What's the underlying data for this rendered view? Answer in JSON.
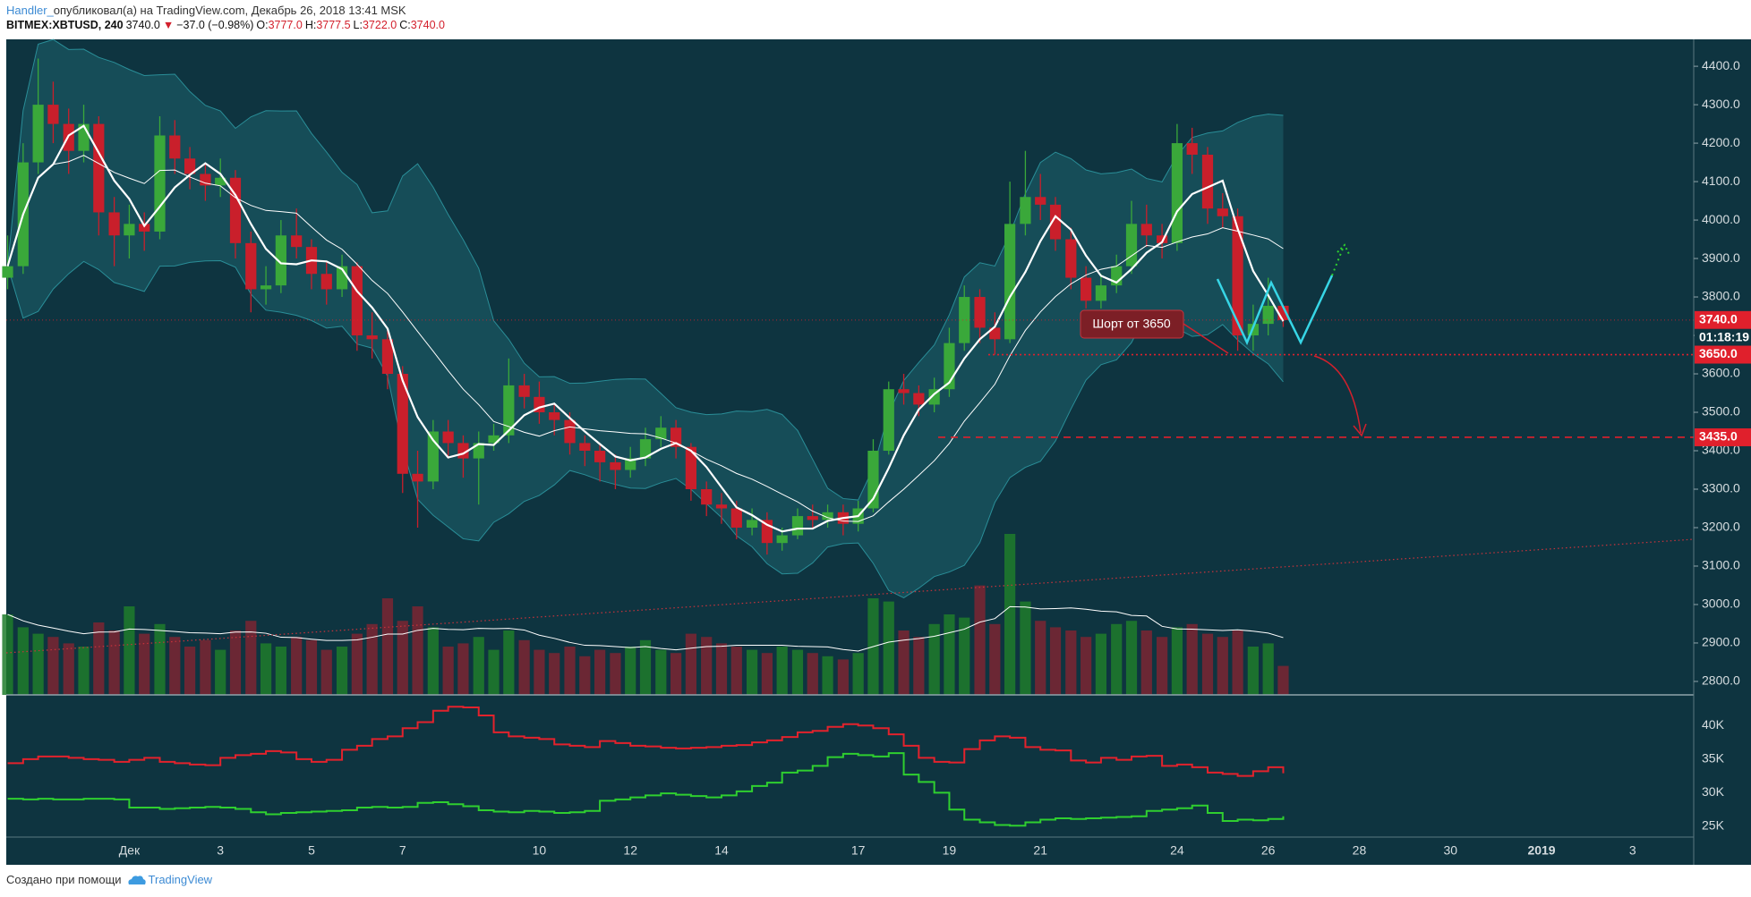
{
  "header": {
    "author": "Handler_",
    "published": "опубликовал(а) на TradingView.com, Декабрь 26, 2018 13:41 MSK",
    "symbol": "BITMEX:XBTUSD, 240",
    "price": "3740.0",
    "arrow": "▼",
    "change": "−37.0 (−0.98%)",
    "o_label": "O:",
    "o": "3777.0",
    "h_label": "H:",
    "h": "3777.5",
    "l_label": "L:",
    "l": "3722.0",
    "c_label": "C:",
    "c": "3740.0"
  },
  "footer": {
    "text": "Создано при помощи",
    "brand": "TradingView"
  },
  "chart_data": {
    "type": "candlestick",
    "xlim": [
      -2.7,
      34.34
    ],
    "xticks": [
      {
        "value": 0,
        "label": "Дек"
      },
      {
        "value": 2,
        "label": "3"
      },
      {
        "value": 4,
        "label": "5"
      },
      {
        "value": 6,
        "label": "7"
      },
      {
        "value": 9,
        "label": "10"
      },
      {
        "value": 11,
        "label": "12"
      },
      {
        "value": 13,
        "label": "14"
      },
      {
        "value": 16,
        "label": "17"
      },
      {
        "value": 18,
        "label": "19"
      },
      {
        "value": 20,
        "label": "21"
      },
      {
        "value": 23,
        "label": "24"
      },
      {
        "value": 25,
        "label": "26"
      },
      {
        "value": 27,
        "label": "28"
      },
      {
        "value": 29,
        "label": "30"
      },
      {
        "value": 31,
        "label": "2019"
      },
      {
        "value": 33,
        "label": "3"
      }
    ],
    "ylim": [
      2765,
      4470
    ],
    "yticks": [
      {
        "value": 4400,
        "label": "4400.0"
      },
      {
        "value": 4300,
        "label": "4300.0"
      },
      {
        "value": 4200,
        "label": "4200.0"
      },
      {
        "value": 4100,
        "label": "4100.0"
      },
      {
        "value": 4000,
        "label": "4000.0"
      },
      {
        "value": 3900,
        "label": "3900.0"
      },
      {
        "value": 3800,
        "label": "3800.0"
      },
      {
        "value": 3700,
        "label": "3700.0"
      },
      {
        "value": 3600,
        "label": "3600.0"
      },
      {
        "value": 3500,
        "label": "3500.0"
      },
      {
        "value": 3400,
        "label": "3400.0"
      },
      {
        "value": 3300,
        "label": "3300.0"
      },
      {
        "value": 3200,
        "label": "3200.0"
      },
      {
        "value": 3100,
        "label": "3100.0"
      },
      {
        "value": 3000,
        "label": "3000.0"
      },
      {
        "value": 2900,
        "label": "2900.0"
      },
      {
        "value": 2800,
        "label": "2800.0"
      }
    ],
    "y2lim": [
      23400,
      44300
    ],
    "y2ticks": [
      {
        "value": 25000,
        "label": "25K"
      },
      {
        "value": 30000,
        "label": "30K"
      },
      {
        "value": 35000,
        "label": "35K"
      },
      {
        "value": 40000,
        "label": "40K"
      }
    ],
    "grid": true,
    "colors": {
      "up": "#3aa83a",
      "down": "#c91f2b",
      "volume_up": "#1f7d2c",
      "volume_down": "#7b2632",
      "band": "#2a8e98",
      "ma": "#ffffff",
      "level": "#e0202c"
    },
    "x": [
      -2.67,
      -2.33,
      -2,
      -1.67,
      -1.33,
      -1,
      -0.67,
      -0.33,
      0,
      0.33,
      0.67,
      1,
      1.33,
      1.67,
      2,
      2.33,
      2.67,
      3,
      3.33,
      3.67,
      4,
      4.33,
      4.67,
      5,
      5.33,
      5.67,
      6,
      6.33,
      6.67,
      7,
      7.33,
      7.67,
      8,
      8.33,
      8.67,
      9,
      9.33,
      9.67,
      10,
      10.33,
      10.67,
      11,
      11.33,
      11.67,
      12,
      12.33,
      12.67,
      13,
      13.33,
      13.67,
      14,
      14.33,
      14.67,
      15,
      15.33,
      15.67,
      16,
      16.33,
      16.67,
      17,
      17.33,
      17.67,
      18,
      18.33,
      18.67,
      19,
      19.33,
      19.67,
      20,
      20.33,
      20.67,
      21,
      21.33,
      21.67,
      22,
      22.33,
      22.67,
      23,
      23.33,
      23.67,
      24,
      24.33,
      24.67,
      25,
      25.33
    ],
    "candles": [
      [
        3850,
        3960,
        3820,
        3880
      ],
      [
        3880,
        4200,
        3860,
        4150
      ],
      [
        4150,
        4420,
        4120,
        4300
      ],
      [
        4300,
        4360,
        4200,
        4250
      ],
      [
        4250,
        4290,
        4120,
        4180
      ],
      [
        4180,
        4300,
        4150,
        4250
      ],
      [
        4250,
        4270,
        3960,
        4020
      ],
      [
        4020,
        4060,
        3880,
        3960
      ],
      [
        3960,
        4040,
        3900,
        3990
      ],
      [
        3990,
        4020,
        3920,
        3970
      ],
      [
        3970,
        4270,
        3950,
        4220
      ],
      [
        4220,
        4260,
        4120,
        4160
      ],
      [
        4160,
        4190,
        4080,
        4120
      ],
      [
        4120,
        4150,
        4050,
        4090
      ],
      [
        4090,
        4160,
        4060,
        4110
      ],
      [
        4110,
        4130,
        3900,
        3940
      ],
      [
        3940,
        3970,
        3760,
        3820
      ],
      [
        3820,
        3880,
        3780,
        3830
      ],
      [
        3830,
        4000,
        3810,
        3960
      ],
      [
        3960,
        4030,
        3900,
        3930
      ],
      [
        3930,
        3950,
        3820,
        3860
      ],
      [
        3860,
        3890,
        3780,
        3820
      ],
      [
        3820,
        3910,
        3800,
        3880
      ],
      [
        3880,
        3890,
        3660,
        3700
      ],
      [
        3700,
        3760,
        3640,
        3690
      ],
      [
        3690,
        3720,
        3560,
        3600
      ],
      [
        3600,
        3620,
        3290,
        3340
      ],
      [
        3340,
        3400,
        3200,
        3320
      ],
      [
        3320,
        3480,
        3300,
        3450
      ],
      [
        3450,
        3480,
        3380,
        3420
      ],
      [
        3420,
        3440,
        3330,
        3380
      ],
      [
        3380,
        3450,
        3260,
        3420
      ],
      [
        3420,
        3470,
        3400,
        3440
      ],
      [
        3440,
        3640,
        3420,
        3570
      ],
      [
        3570,
        3600,
        3510,
        3540
      ],
      [
        3540,
        3580,
        3470,
        3500
      ],
      [
        3500,
        3520,
        3440,
        3480
      ],
      [
        3480,
        3500,
        3390,
        3420
      ],
      [
        3420,
        3440,
        3360,
        3400
      ],
      [
        3400,
        3420,
        3320,
        3370
      ],
      [
        3370,
        3390,
        3300,
        3350
      ],
      [
        3350,
        3410,
        3330,
        3380
      ],
      [
        3380,
        3460,
        3360,
        3430
      ],
      [
        3430,
        3490,
        3410,
        3460
      ],
      [
        3460,
        3480,
        3380,
        3410
      ],
      [
        3410,
        3420,
        3270,
        3300
      ],
      [
        3300,
        3320,
        3230,
        3260
      ],
      [
        3260,
        3290,
        3210,
        3250
      ],
      [
        3250,
        3270,
        3170,
        3200
      ],
      [
        3200,
        3250,
        3180,
        3220
      ],
      [
        3220,
        3240,
        3130,
        3160
      ],
      [
        3160,
        3200,
        3140,
        3180
      ],
      [
        3180,
        3250,
        3170,
        3230
      ],
      [
        3230,
        3260,
        3200,
        3220
      ],
      [
        3220,
        3260,
        3200,
        3240
      ],
      [
        3240,
        3260,
        3180,
        3210
      ],
      [
        3210,
        3270,
        3190,
        3250
      ],
      [
        3250,
        3430,
        3240,
        3400
      ],
      [
        3400,
        3580,
        3390,
        3560
      ],
      [
        3560,
        3600,
        3520,
        3550
      ],
      [
        3550,
        3570,
        3490,
        3520
      ],
      [
        3520,
        3590,
        3500,
        3560
      ],
      [
        3560,
        3720,
        3540,
        3680
      ],
      [
        3680,
        3830,
        3660,
        3800
      ],
      [
        3800,
        3820,
        3680,
        3720
      ],
      [
        3720,
        3760,
        3650,
        3690
      ],
      [
        3690,
        4100,
        3680,
        3990
      ],
      [
        3990,
        4180,
        3960,
        4060
      ],
      [
        4060,
        4120,
        4000,
        4040
      ],
      [
        4040,
        4060,
        3920,
        3950
      ],
      [
        3950,
        3980,
        3820,
        3850
      ],
      [
        3850,
        3880,
        3770,
        3790
      ],
      [
        3790,
        3860,
        3770,
        3830
      ],
      [
        3830,
        3910,
        3810,
        3880
      ],
      [
        3880,
        4050,
        3860,
        3990
      ],
      [
        3990,
        4040,
        3930,
        3960
      ],
      [
        3960,
        3990,
        3900,
        3940
      ],
      [
        3940,
        4250,
        3920,
        4200
      ],
      [
        4200,
        4240,
        4120,
        4170
      ],
      [
        4170,
        4190,
        3990,
        4030
      ],
      [
        4030,
        4070,
        3980,
        4010
      ],
      [
        4010,
        4030,
        3660,
        3700
      ],
      [
        3700,
        3780,
        3660,
        3730
      ],
      [
        3730,
        3850,
        3700,
        3777
      ],
      [
        3777,
        3777.5,
        3722,
        3740
      ]
    ],
    "volume": [
      50,
      42,
      38,
      36,
      32,
      30,
      45,
      40,
      55,
      38,
      44,
      36,
      30,
      34,
      28,
      40,
      46,
      32,
      30,
      36,
      34,
      28,
      30,
      38,
      44,
      60,
      46,
      55,
      42,
      30,
      32,
      36,
      28,
      40,
      34,
      28,
      26,
      30,
      24,
      28,
      26,
      30,
      34,
      28,
      26,
      38,
      36,
      32,
      30,
      28,
      26,
      30,
      28,
      26,
      24,
      22,
      26,
      60,
      58,
      40,
      36,
      44,
      50,
      48,
      68,
      44,
      100,
      58,
      46,
      42,
      40,
      36,
      38,
      44,
      46,
      40,
      36,
      42,
      44,
      38,
      36,
      40,
      30,
      32,
      18
    ],
    "series": [
      {
        "color": "#e3222c",
        "axis": "y2",
        "values": [
          34400,
          35000,
          35400,
          35400,
          35200,
          35000,
          34900,
          34600,
          34900,
          35200,
          34600,
          34400,
          34200,
          34100,
          35200,
          35600,
          35800,
          36200,
          36000,
          35000,
          34600,
          34900,
          36400,
          37000,
          38000,
          38400,
          39600,
          40500,
          42200,
          42800,
          42700,
          41500,
          39000,
          38400,
          38200,
          38000,
          37200,
          37000,
          36800,
          37700,
          37400,
          37000,
          36900,
          36700,
          36600,
          36700,
          36800,
          37000,
          37100,
          37500,
          37800,
          38300,
          39000,
          39200,
          39800,
          40200,
          40000,
          39600,
          38700,
          37000,
          35200,
          34600,
          34500,
          36500,
          37800,
          38400,
          38200,
          36800,
          36400,
          36300,
          34800,
          34500,
          35200,
          34900,
          35400,
          35500,
          34000,
          34200,
          33800,
          33000,
          32800,
          32500,
          33200,
          33800,
          32900
        ]
      },
      {
        "color": "#2fcf2f",
        "axis": "y2",
        "values": [
          29100,
          29000,
          29100,
          29000,
          29000,
          29100,
          29100,
          29000,
          27800,
          27800,
          27600,
          27700,
          27800,
          27900,
          27800,
          27600,
          27100,
          26800,
          27000,
          27100,
          27200,
          27300,
          27400,
          27800,
          27900,
          27800,
          27900,
          28500,
          28600,
          28300,
          28000,
          27400,
          27200,
          27100,
          27300,
          27200,
          27000,
          27100,
          27300,
          28800,
          29000,
          29300,
          29600,
          29900,
          29700,
          29500,
          29300,
          29600,
          30200,
          31000,
          31500,
          33000,
          33300,
          34000,
          35300,
          35800,
          35600,
          35400,
          35900,
          32700,
          31600,
          30000,
          27500,
          26000,
          25600,
          25200,
          25100,
          25600,
          26000,
          26200,
          26100,
          26200,
          26300,
          26400,
          26500,
          27300,
          27500,
          27700,
          28100,
          27000,
          25800,
          26000,
          25900,
          26100,
          26500
        ]
      }
    ],
    "last_price": {
      "value": 3740,
      "label": "3740.0"
    },
    "countdown": "01:18:19",
    "levels": [
      {
        "value": 3650,
        "label": "3650.0"
      },
      {
        "value": 3435,
        "label": "3435.0"
      }
    ],
    "annotation": "Шорт от 3650"
  }
}
